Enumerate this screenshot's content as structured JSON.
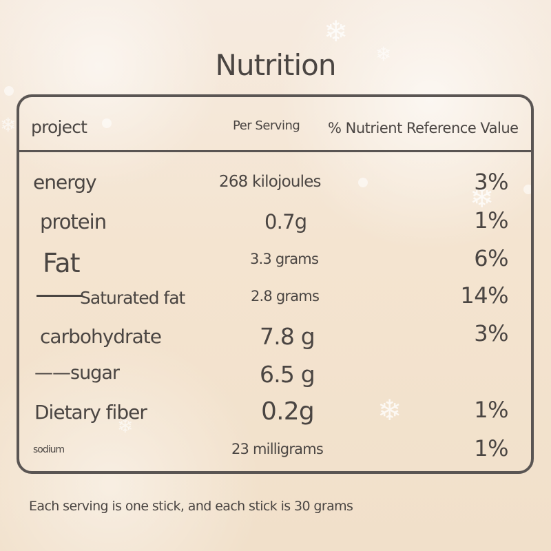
{
  "title": "Nutrition",
  "header": {
    "item": "project",
    "per_serving": "Per Serving",
    "nrv": "% Nutrient Reference Value"
  },
  "rows": [
    {
      "label": "energy",
      "value": "268 kilojoules",
      "nrv": "3%"
    },
    {
      "label": "protein",
      "value": "0.7g",
      "nrv": "1%"
    },
    {
      "label": "Fat",
      "value": "3.3 grams",
      "nrv": "6%"
    },
    {
      "label": "Saturated fat",
      "value": "2.8 grams",
      "nrv": "14%"
    },
    {
      "label": "carbohydrate",
      "value": "7.8 g",
      "nrv": "3%"
    },
    {
      "label": "——sugar",
      "value": "6.5 g",
      "nrv": ""
    },
    {
      "label": "Dietary fiber",
      "value": "0.2g",
      "nrv": "1%"
    },
    {
      "label": "sodium",
      "value": "23 milligrams",
      "nrv": "1%"
    }
  ],
  "footnote": "Each serving is one stick, and each stick is 30 grams"
}
